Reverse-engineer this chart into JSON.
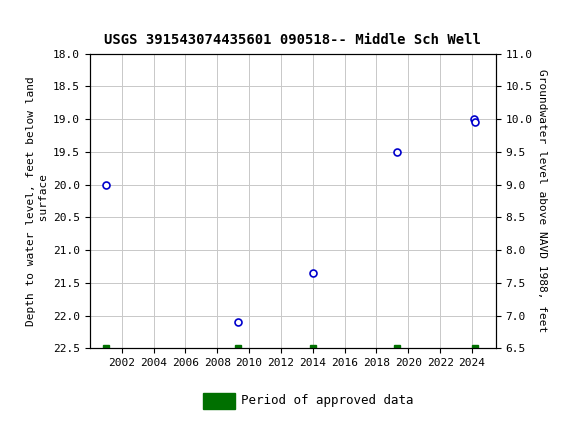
{
  "title": "USGS 391543074435601 090518-- Middle Sch Well",
  "ylabel_left": "Depth to water level, feet below land\n surface",
  "ylabel_right": "Groundwater level above NAVD 1988, feet",
  "data_x": [
    2001.0,
    2009.3,
    2014.0,
    2019.3,
    2024.1,
    2024.2
  ],
  "data_y": [
    20.0,
    22.1,
    21.35,
    19.5,
    19.0,
    19.05
  ],
  "green_bar_x": [
    2001.0,
    2009.3,
    2014.0,
    2019.3,
    2024.2
  ],
  "green_bar_y": [
    22.5,
    22.5,
    22.5,
    22.5,
    22.5
  ],
  "ylim_left": [
    18.0,
    22.5
  ],
  "ylim_right_top": 11.0,
  "ylim_right_bottom": 6.5,
  "xlim": [
    2000,
    2025.5
  ],
  "xticks": [
    2002,
    2004,
    2006,
    2008,
    2010,
    2012,
    2014,
    2016,
    2018,
    2020,
    2022,
    2024
  ],
  "yticks_left": [
    18.0,
    18.5,
    19.0,
    19.5,
    20.0,
    20.5,
    21.0,
    21.5,
    22.0,
    22.5
  ],
  "yticks_right": [
    11.0,
    10.5,
    10.0,
    9.5,
    9.0,
    8.5,
    8.0,
    7.5,
    7.0,
    6.5
  ],
  "marker_color": "#0000CC",
  "marker_facecolor": "white",
  "green_color": "#007000",
  "header_bg_color": "#006633",
  "background_color": "#ffffff",
  "grid_color": "#c8c8c8",
  "legend_label": "Period of approved data",
  "font_family": "monospace",
  "title_fontsize": 10,
  "tick_fontsize": 8,
  "ylabel_fontsize": 8
}
